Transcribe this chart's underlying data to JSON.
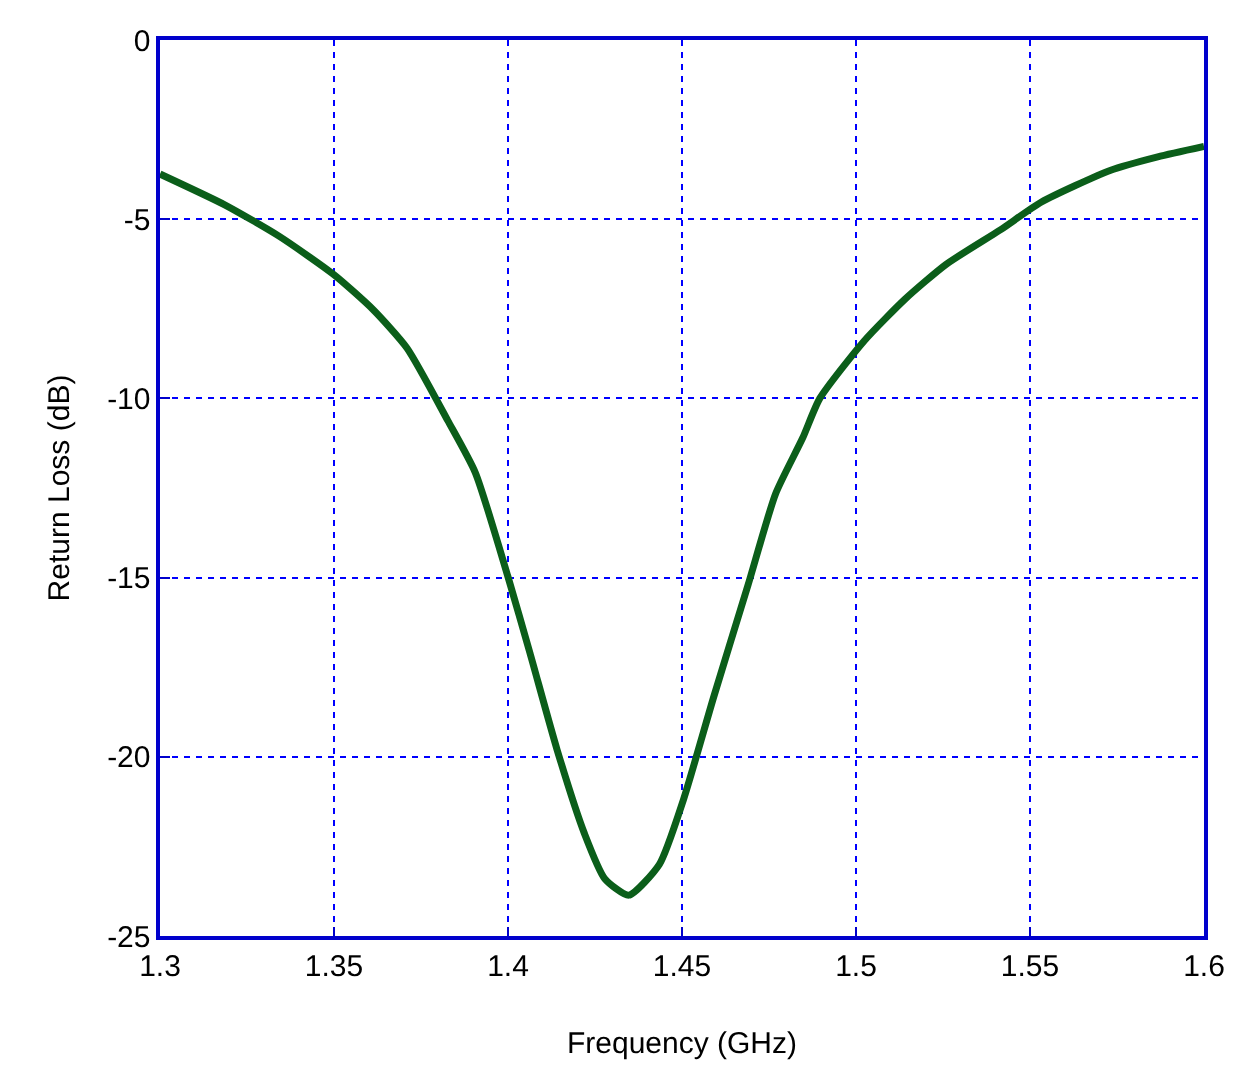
{
  "chart_data": {
    "type": "line",
    "xlabel": "Frequency (GHz)",
    "ylabel": "Return Loss (dB)",
    "xlim": [
      1.3,
      1.6
    ],
    "xticks": [
      1.3,
      1.35,
      1.4,
      1.45,
      1.5,
      1.55,
      1.6
    ],
    "ylim": [
      -25,
      0
    ],
    "yticks": [
      -25,
      -20,
      -15,
      -10,
      -5,
      0
    ],
    "grid": true,
    "marker": "none",
    "line_style": "solid",
    "series": [
      {
        "color": "#0b5e1a",
        "x": [
          1.3,
          1.3186,
          1.3343,
          1.35,
          1.3612,
          1.371,
          1.3827,
          1.3906,
          1.4,
          1.4063,
          1.4141,
          1.422,
          1.4278,
          1.4347,
          1.4435,
          1.4504,
          1.4592,
          1.469,
          1.4769,
          1.4847,
          1.4896,
          1.5024,
          1.5141,
          1.5259,
          1.5416,
          1.5533,
          1.573,
          1.5867,
          1.6
        ],
        "values": [
          -3.74,
          -4.6,
          -5.48,
          -6.55,
          -7.52,
          -8.6,
          -10.62,
          -12.07,
          -14.98,
          -17.1,
          -19.8,
          -22.15,
          -23.4,
          -23.86,
          -23.0,
          -21.2,
          -18.3,
          -15.2,
          -12.66,
          -11.1,
          -10.0,
          -8.39,
          -7.23,
          -6.26,
          -5.29,
          -4.52,
          -3.64,
          -3.26,
          -2.97
        ]
      }
    ]
  }
}
